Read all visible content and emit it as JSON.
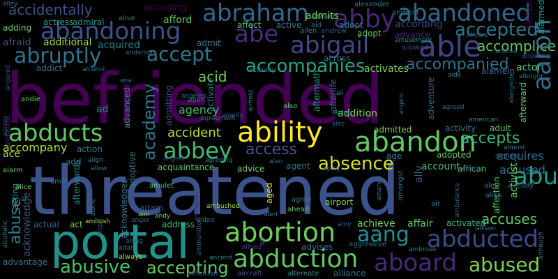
{
  "words": [
    {
      "t": "befriended",
      "c": "#440154"
    },
    {
      "t": "threatened",
      "c": "#3b528b"
    },
    {
      "t": "portal",
      "c": "#21918c"
    },
    {
      "t": "ability",
      "c": "#fde725"
    },
    {
      "t": "abandon",
      "c": "#5ec962"
    },
    {
      "t": "abducts",
      "c": "#5ec962"
    },
    {
      "t": "abbey",
      "c": "#3fbc73"
    },
    {
      "t": "abraham",
      "c": "#31688e"
    },
    {
      "t": "abandoned",
      "c": "#31688e"
    },
    {
      "t": "abandoning",
      "c": "#3b528b"
    },
    {
      "t": "abby",
      "c": "#482878"
    },
    {
      "t": "abe",
      "c": "#472d7b"
    },
    {
      "t": "abigail",
      "c": "#3e4989"
    },
    {
      "t": "able",
      "c": "#414487"
    },
    {
      "t": "abruptly",
      "c": "#2c728e"
    },
    {
      "t": "accept",
      "c": "#2a788e"
    },
    {
      "t": "accepted",
      "c": "#2a788e"
    },
    {
      "t": "accompanies",
      "c": "#20a486"
    },
    {
      "t": "accompanied",
      "c": "#2c728e"
    },
    {
      "t": "accomplice",
      "c": "#5ec962"
    },
    {
      "t": "abortion",
      "c": "#6ece58"
    },
    {
      "t": "abduction",
      "c": "#5ec962"
    },
    {
      "t": "abducted",
      "c": "#3e4989"
    },
    {
      "t": "aboard",
      "c": "#482878"
    },
    {
      "t": "abused",
      "c": "#7ad151"
    },
    {
      "t": "abusive",
      "c": "#48c16e"
    },
    {
      "t": "accepting",
      "c": "#5ec962"
    },
    {
      "t": "aang",
      "c": "#228d8d"
    },
    {
      "t": "abu",
      "c": "#1e9b8a"
    },
    {
      "t": "aaron",
      "c": "#2f6c8e"
    },
    {
      "t": "absence",
      "c": "#d8e219"
    },
    {
      "t": "access",
      "c": "#3b528b"
    },
    {
      "t": "accident",
      "c": "#bddf26"
    },
    {
      "t": "academy",
      "c": "#2a788e"
    },
    {
      "t": "abuse",
      "c": "#26828e"
    },
    {
      "t": "accepts",
      "c": "#31b57b"
    },
    {
      "t": "acquires",
      "c": "#31688e"
    },
    {
      "t": "accused",
      "c": "#2c728e"
    },
    {
      "t": "accuses",
      "c": "#5ec962"
    },
    {
      "t": "accidentally",
      "c": "#3b528b"
    },
    {
      "t": "accusing",
      "c": "#440154"
    },
    {
      "t": "afford",
      "c": "#5ec962"
    },
    {
      "t": "admits",
      "c": "#7ad151"
    },
    {
      "t": "actress",
      "c": "#21a585"
    },
    {
      "t": "admiral",
      "c": "#1f958b"
    },
    {
      "t": "alive",
      "c": "#26828e"
    },
    {
      "t": "alexander",
      "c": "#2a788e"
    },
    {
      "t": "android",
      "c": "#2c728e"
    },
    {
      "t": "amount",
      "c": "#26828e"
    },
    {
      "t": "alarmed",
      "c": "#1fa188"
    },
    {
      "t": "alerted",
      "c": "#440154"
    },
    {
      "t": "adding",
      "c": "#6ece58"
    },
    {
      "t": "affect",
      "c": "#48c16e"
    },
    {
      "t": "active",
      "c": "#2a788e"
    },
    {
      "t": "aid",
      "c": "#2c728e"
    },
    {
      "t": "afraid",
      "c": "#3b528b"
    },
    {
      "t": "additional",
      "c": "#a5db36"
    },
    {
      "t": "acquired",
      "c": "#26828e"
    },
    {
      "t": "admit",
      "c": "#2a788e"
    },
    {
      "t": "anderson",
      "c": "#31688e"
    },
    {
      "t": "allen",
      "c": "#26828e"
    },
    {
      "t": "andrew",
      "c": "#3b528b"
    },
    {
      "t": "adopt",
      "c": "#5ec962"
    },
    {
      "t": "amusement",
      "c": "#21918c"
    },
    {
      "t": "advance",
      "c": "#472d7b"
    },
    {
      "t": "allowed",
      "c": "#3e4989"
    },
    {
      "t": "allows",
      "c": "#3b528b"
    },
    {
      "t": "andrea",
      "c": "#31688e"
    },
    {
      "t": "allowing",
      "c": "#3b528b"
    },
    {
      "t": "according",
      "c": "#3e4989"
    },
    {
      "t": "alley",
      "c": "#26828e"
    },
    {
      "t": "angered",
      "c": "#414487"
    },
    {
      "t": "addict",
      "c": "#2a788e"
    },
    {
      "t": "alcohol",
      "c": "#26828e"
    },
    {
      "t": "ana",
      "c": "#2c728e"
    },
    {
      "t": "acid",
      "c": "#7ad151"
    },
    {
      "t": "actually",
      "c": "#31688e"
    },
    {
      "t": "across",
      "c": "#2a788e"
    },
    {
      "t": "activates",
      "c": "#7ad151"
    },
    {
      "t": "aide",
      "c": "#26828e"
    },
    {
      "t": "alamein",
      "c": "#31688e"
    },
    {
      "t": "actor",
      "c": "#5ec962"
    },
    {
      "t": "albright",
      "c": "#2c728e"
    },
    {
      "t": "ambitious",
      "c": "#482878"
    },
    {
      "t": "andie",
      "c": "#5ec962"
    },
    {
      "t": "admitting",
      "c": "#3e4989"
    },
    {
      "t": "agency",
      "c": "#3fbc73"
    },
    {
      "t": "afterlife",
      "c": "#31688e"
    },
    {
      "t": "aftermath",
      "c": "#1fa188"
    },
    {
      "t": "activate",
      "c": "#2a788e"
    },
    {
      "t": "addition",
      "c": "#7ad151"
    },
    {
      "t": "alpha",
      "c": "#21918c"
    },
    {
      "t": "alec",
      "c": "#2c728e"
    },
    {
      "t": "ali",
      "c": "#26828e"
    },
    {
      "t": "adventure",
      "c": "#31688e"
    },
    {
      "t": "agreed",
      "c": "#2c728e"
    },
    {
      "t": "american",
      "c": "#21918c"
    },
    {
      "t": "alongside",
      "c": "#2a788e"
    },
    {
      "t": "afterward",
      "c": "#5ec962"
    },
    {
      "t": "ad",
      "c": "#21918c"
    },
    {
      "t": "advanced",
      "c": "#21918c"
    },
    {
      "t": "angeles",
      "c": "#2c728e"
    },
    {
      "t": "albert",
      "c": "#2a788e"
    },
    {
      "t": "angrily",
      "c": "#31688e"
    },
    {
      "t": "airfield",
      "c": "#26828e"
    },
    {
      "t": "also",
      "c": "#5ec962"
    },
    {
      "t": "angelo",
      "c": "#31688e"
    },
    {
      "t": "activity",
      "c": "#2a788e"
    },
    {
      "t": "adult",
      "c": "#5ec962"
    },
    {
      "t": "agrees",
      "c": "#3b528b"
    },
    {
      "t": "agreement",
      "c": "#2c728e"
    },
    {
      "t": "admitted",
      "c": "#7ad151"
    },
    {
      "t": "ace",
      "c": "#a5db36"
    },
    {
      "t": "accompany",
      "c": "#b5de2b"
    },
    {
      "t": "action",
      "c": "#2a788e"
    },
    {
      "t": "angela",
      "c": "#3e4989"
    },
    {
      "t": "agreeing",
      "c": "#26828e"
    },
    {
      "t": "adoptive",
      "c": "#2a788e"
    },
    {
      "t": "advice",
      "c": "#7ad151"
    },
    {
      "t": "agent",
      "c": "#2a788e"
    },
    {
      "t": "age",
      "c": "#2a788e"
    },
    {
      "t": "adopted",
      "c": "#5ec962"
    },
    {
      "t": "african",
      "c": "#48c16e"
    },
    {
      "t": "almost",
      "c": "#26828e"
    },
    {
      "t": "airplane",
      "c": "#31688e"
    },
    {
      "t": "alter",
      "c": "#3b528b"
    },
    {
      "t": "alarm",
      "c": "#7ad151"
    },
    {
      "t": "add",
      "c": "#31688e"
    },
    {
      "t": "align",
      "c": "#26828e"
    },
    {
      "t": "allow",
      "c": "#2a788e"
    },
    {
      "t": "acquaintance",
      "c": "#5ec962"
    },
    {
      "t": "alan",
      "c": "#2c728e"
    },
    {
      "t": "aging",
      "c": "#3b528b"
    },
    {
      "t": "account",
      "c": "#3fbc73"
    },
    {
      "t": "alex",
      "c": "#26828e"
    },
    {
      "t": "already",
      "c": "#2c728e"
    },
    {
      "t": "acting",
      "c": "#21918c"
    },
    {
      "t": "alice",
      "c": "#5ec962"
    },
    {
      "t": "amid",
      "c": "#2a788e"
    },
    {
      "t": "amulet",
      "c": "#48c16e"
    },
    {
      "t": "ambushed",
      "c": "#a5db36"
    },
    {
      "t": "ahead",
      "c": "#5ec962"
    },
    {
      "t": "airport",
      "c": "#7ad151"
    },
    {
      "t": "alert",
      "c": "#2a788e"
    },
    {
      "t": "agree",
      "c": "#2a788e"
    },
    {
      "t": "amends",
      "c": "#2a788e"
    },
    {
      "t": "amongst",
      "c": "#2c728e"
    },
    {
      "t": "ally",
      "c": "#31688e"
    },
    {
      "t": "air",
      "c": "#26828e"
    },
    {
      "t": "ambulance",
      "c": "#31688e"
    },
    {
      "t": "al",
      "c": "#21918c"
    },
    {
      "t": "aim",
      "c": "#7ad151"
    },
    {
      "t": "andy",
      "c": "#7ad151"
    },
    {
      "t": "adam",
      "c": "#3b528b"
    },
    {
      "t": "aided",
      "c": "#2a788e"
    },
    {
      "t": "alone",
      "c": "#31688e"
    },
    {
      "t": "afterwards",
      "c": "#21918c"
    },
    {
      "t": "angel",
      "c": "#3b528b"
    },
    {
      "t": "aged",
      "c": "#d8e219"
    },
    {
      "t": "affection",
      "c": "#5ec962"
    },
    {
      "t": "activist",
      "c": "#5ec962"
    },
    {
      "t": "alias",
      "c": "#2a788e"
    },
    {
      "t": "alcoholic",
      "c": "#26828e"
    },
    {
      "t": "acknowledge",
      "c": "#3b528b"
    },
    {
      "t": "actual",
      "c": "#31688e"
    },
    {
      "t": "act",
      "c": "#7ad151"
    },
    {
      "t": "ambush",
      "c": "#a5db36"
    },
    {
      "t": "acknowledges",
      "c": "#2a788e"
    },
    {
      "t": "anger",
      "c": "#31688e"
    },
    {
      "t": "address",
      "c": "#3fbc73"
    },
    {
      "t": "amy",
      "c": "#31688e"
    },
    {
      "t": "achieve",
      "c": "#7ad151"
    },
    {
      "t": "affair",
      "c": "#5ec962"
    },
    {
      "t": "activated",
      "c": "#31b57b"
    },
    {
      "t": "allison",
      "c": "#26828e"
    },
    {
      "t": "although",
      "c": "#2c728e"
    },
    {
      "t": "advantage",
      "c": "#2a788e"
    },
    {
      "t": "along",
      "c": "#31688e"
    },
    {
      "t": "altar",
      "c": "#2a788e"
    },
    {
      "t": "always",
      "c": "#a5db36"
    },
    {
      "t": "ammunition",
      "c": "#31688e"
    },
    {
      "t": "amnesia",
      "c": "#482878"
    },
    {
      "t": "alfred",
      "c": "#472d7b"
    },
    {
      "t": "ah",
      "c": "#3e4989"
    },
    {
      "t": "advises",
      "c": "#2a788e"
    },
    {
      "t": "aggressive",
      "c": "#2a788e"
    },
    {
      "t": "ambrose",
      "c": "#26828e"
    },
    {
      "t": "ancient",
      "c": "#21918c"
    },
    {
      "t": "adopt",
      "c": "#2a788e"
    },
    {
      "t": "ambition",
      "c": "#31688e"
    },
    {
      "t": "aircraft",
      "c": "#3b528b"
    },
    {
      "t": "alternate",
      "c": "#21918c"
    },
    {
      "t": "alliance",
      "c": "#2a788e"
    }
  ]
}
